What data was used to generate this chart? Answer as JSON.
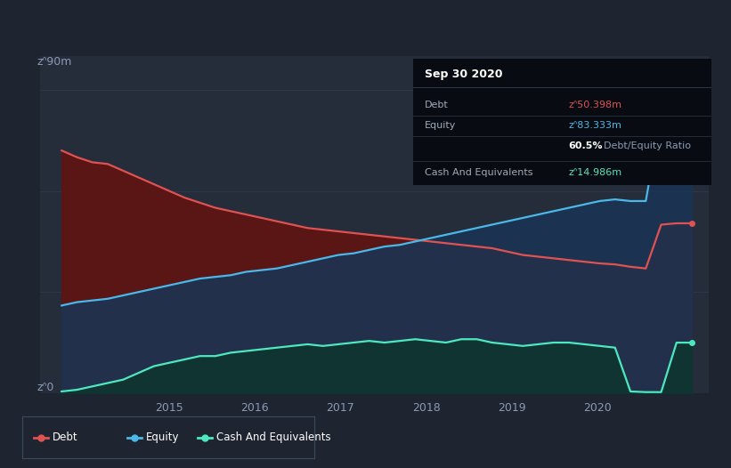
{
  "bg_color": "#1e2530",
  "plot_bg_color": "#252d3b",
  "grid_color": "#2e3a4a",
  "title": "Sep 30 2020",
  "tooltip_bg": "#080c12",
  "ylabel_top": "zᐢ90m",
  "ylabel_bottom": "zᐢ0",
  "debt_color": "#e05252",
  "equity_color": "#4ab8e8",
  "cash_color": "#4de8c0",
  "debt_fill_color": "#5a1515",
  "equity_fill_color": "#1a3555",
  "cash_fill_color": "#0d3530",
  "legend_border": "#3a4a5a",
  "debt_label": "Debt",
  "equity_label": "Equity",
  "cash_label": "Cash And Equivalents",
  "debt_values": [
    72,
    70,
    68.5,
    68,
    66,
    64,
    62,
    60,
    58,
    56.5,
    55,
    54,
    53,
    52,
    51,
    50,
    49,
    48.5,
    48,
    47.5,
    47,
    46.5,
    46,
    45.5,
    45,
    44.5,
    44,
    43.5,
    43,
    42,
    41,
    40.5,
    40,
    39.5,
    39,
    38.5,
    38.2,
    37.5,
    37,
    50,
    50.398,
    50.398
  ],
  "equity_values": [
    26,
    27,
    27.5,
    28,
    29,
    30,
    31,
    32,
    33,
    34,
    34.5,
    35,
    36,
    36.5,
    37,
    38,
    39,
    40,
    41,
    41.5,
    42.5,
    43.5,
    44,
    45,
    46,
    47,
    48,
    49,
    50,
    51,
    52,
    53,
    54,
    55,
    56,
    57,
    57.5,
    57,
    57,
    83,
    83.333,
    83.333
  ],
  "cash_values": [
    0.5,
    1,
    2,
    3,
    4,
    6,
    8,
    9,
    10,
    11,
    11,
    12,
    12.5,
    13,
    13.5,
    14,
    14.5,
    14,
    14.5,
    15,
    15.5,
    15,
    15.5,
    16,
    15.5,
    15,
    16,
    16,
    15,
    14.5,
    14,
    14.5,
    15,
    15,
    14.5,
    14,
    13.5,
    0.5,
    0.3,
    0.3,
    14.986,
    14.986
  ],
  "ylim": [
    0,
    100
  ],
  "xlim_start": 2013.5,
  "xlim_end": 2021.3,
  "x_ticks": [
    2015,
    2016,
    2017,
    2018,
    2019,
    2020
  ],
  "tooltip": {
    "title": "Sep 30 2020",
    "rows": [
      {
        "label": "Debt",
        "value": "zᐢ50.398m",
        "value_color": "#e05252"
      },
      {
        "label": "Equity",
        "value": "zᐢ83.333m",
        "value_color": "#4ab8e8"
      },
      {
        "label": "",
        "value": "60.5%",
        "value_color": "#ffffff",
        "extra": "Debt/Equity Ratio",
        "extra_color": "#8a9ab5"
      },
      {
        "label": "Cash And Equivalents",
        "value": "zᐢ14.986m",
        "value_color": "#4de8c0"
      }
    ]
  }
}
